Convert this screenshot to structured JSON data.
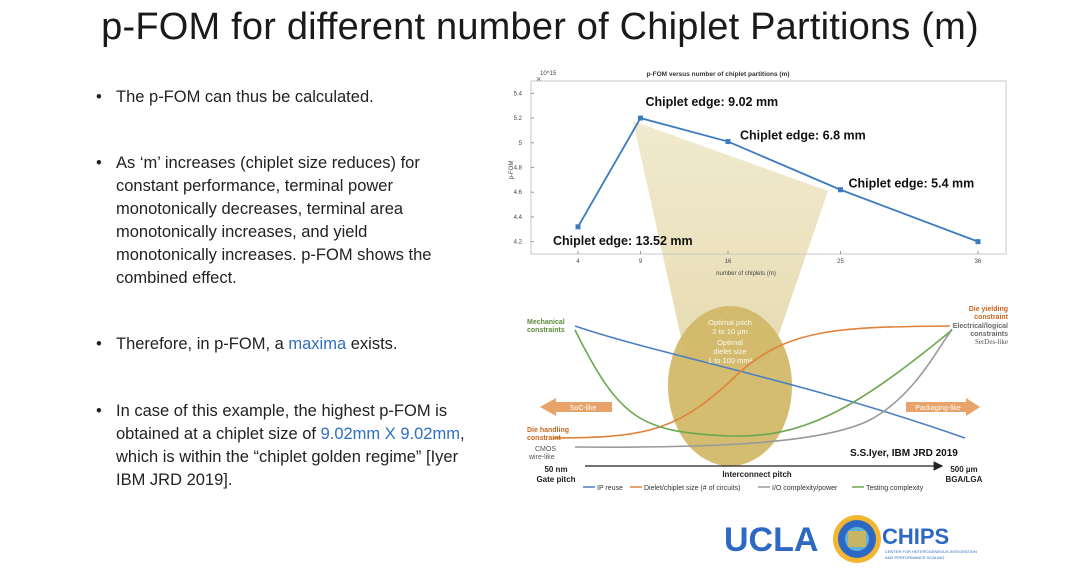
{
  "slide": {
    "title": "p-FOM for different number of Chiplet Partitions (m)"
  },
  "bullets": [
    {
      "text": "The p-FOM can thus be calculated."
    },
    {
      "text": "As ‘m’ increases (chiplet size reduces) for constant performance, terminal power monotonically decreases, terminal area monotonically increases, and yield monotonically increases. p-FOM shows the combined effect."
    },
    {
      "pre": "Therefore, in p-FOM, a ",
      "highlight": "maxima",
      "post": " exists."
    },
    {
      "pre": "In case of this example, the highest p-FOM is obtained at a chiplet size of ",
      "highlight": "9.02mm X 9.02mm",
      "post": ", which is within the “chiplet golden regime” [Iyer IBM JRD 2019]."
    }
  ],
  "chart_data": [
    {
      "type": "line",
      "title": "p-FOM versus number of chiplet partitions (m)",
      "xlabel": "number of chiplets (m)",
      "ylabel": "p-FOM",
      "y_exponent": "10^15",
      "categories": [
        "4",
        "9",
        "16",
        "25",
        "36"
      ],
      "x": [
        4,
        9,
        16,
        25,
        36
      ],
      "y": [
        4.32,
        5.2,
        5.01,
        4.62,
        4.2
      ],
      "ylim": [
        4.1,
        5.5
      ],
      "yticks": [
        "4.2",
        "4.4",
        "4.6",
        "4.8",
        "5",
        "5.2",
        "5.4"
      ],
      "annotations": [
        "Chiplet edge: 13.52 mm",
        "Chiplet edge: 9.02 mm",
        "Chiplet edge: 6.8 mm",
        "Chiplet edge: 5.4 mm"
      ],
      "line_color": "#3b7bbf"
    },
    {
      "type": "line",
      "title": "",
      "xlabel": "Interconnect pitch",
      "x_left": "50 nm",
      "x_left_sub": "Gate pitch",
      "x_right": "500 µm",
      "x_right_sub": "BGA/LGA",
      "citation": "S.S.Iyer, IBM JRD 2019",
      "left_labels": [
        "Mechanical",
        "constraints",
        "Die handling",
        "constraint",
        "CMOS",
        "wire-like"
      ],
      "right_labels": [
        "Die yielding",
        "constraint",
        "Electrical/logical",
        "constraints",
        "SerDes-like"
      ],
      "left_arrow": "SoC-like",
      "right_arrow": "Packaging-like",
      "ellipse_text": [
        "Optimal pitch",
        "2 to 10 µm",
        "Optimal",
        "dielet size",
        "1 to 100 mm²"
      ],
      "legend": [
        "IP reuse",
        "Dielet/chiplet size (# of circuits)",
        "I/O complexity/power",
        "Testing complexity"
      ],
      "series_colors": {
        "IP reuse": "#4a7fc0",
        "Dielet/chiplet size (# of circuits)": "#e0823a",
        "I/O complexity/power": "#9a9a9a",
        "Testing complexity": "#6aa84f"
      }
    }
  ],
  "logo": {
    "left": "UCLA",
    "right": "CHIPS",
    "sub1": "CENTER FOR HETEROGENEOUS INTEGRATION",
    "sub2": "AND PERFORMANCE SCALING"
  }
}
